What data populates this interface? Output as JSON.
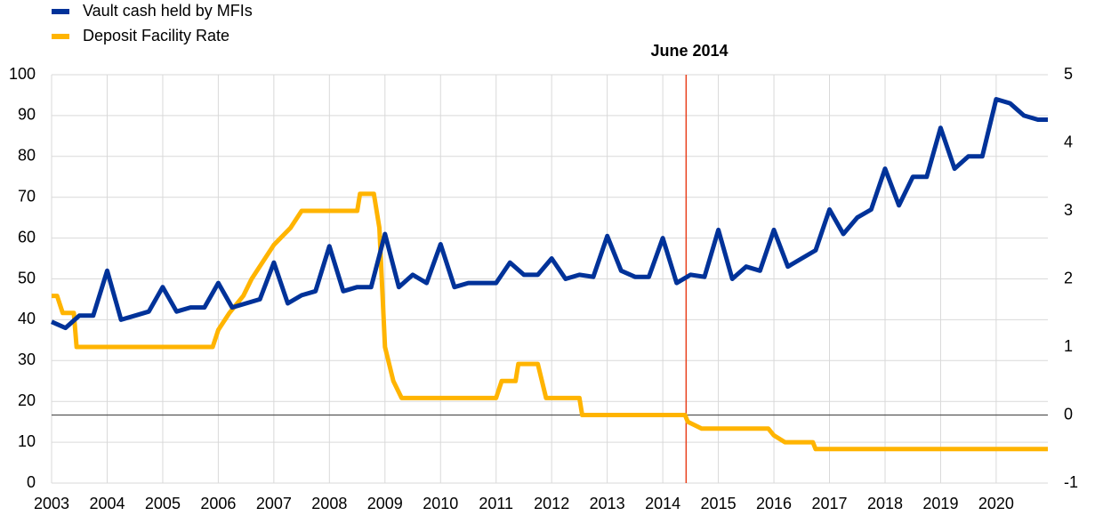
{
  "chart_data": {
    "type": "line",
    "annotation": {
      "label": "June 2014",
      "x": 2014.42
    },
    "xlim": [
      2003,
      2020.93
    ],
    "xticks": [
      2003,
      2004,
      2005,
      2006,
      2007,
      2008,
      2009,
      2010,
      2011,
      2012,
      2013,
      2014,
      2015,
      2016,
      2017,
      2018,
      2019,
      2020
    ],
    "ylim": [
      0,
      100
    ],
    "yticks": [
      0,
      10,
      20,
      30,
      40,
      50,
      60,
      70,
      80,
      90,
      100
    ],
    "y2lim": [
      -1,
      5
    ],
    "y2ticks": [
      -1,
      0,
      1,
      2,
      3,
      4,
      5
    ],
    "grid": true,
    "legend": "top-left",
    "series": [
      {
        "name": "Vault cash held by MFIs",
        "color": "#003299",
        "x": [
          2003,
          2003.25,
          2003.5,
          2003.75,
          2004,
          2004.25,
          2004.5,
          2004.75,
          2005,
          2005.25,
          2005.5,
          2005.75,
          2006,
          2006.25,
          2006.5,
          2006.75,
          2007,
          2007.25,
          2007.5,
          2007.75,
          2008,
          2008.25,
          2008.5,
          2008.75,
          2009,
          2009.25,
          2009.5,
          2009.75,
          2010,
          2010.25,
          2010.5,
          2010.75,
          2011,
          2011.25,
          2011.5,
          2011.75,
          2012,
          2012.25,
          2012.5,
          2012.75,
          2013,
          2013.25,
          2013.5,
          2013.75,
          2014,
          2014.25,
          2014.5,
          2014.75,
          2015,
          2015.25,
          2015.5,
          2015.75,
          2016,
          2016.25,
          2016.5,
          2016.75,
          2017,
          2017.25,
          2017.5,
          2017.75,
          2018,
          2018.25,
          2018.5,
          2018.75,
          2019,
          2019.25,
          2019.5,
          2019.75,
          2020,
          2020.25,
          2020.5,
          2020.75,
          2020.93
        ],
        "values": [
          39.5,
          38,
          41,
          41,
          52,
          40,
          41,
          42,
          48,
          42,
          43,
          43,
          49,
          43,
          44,
          45,
          54,
          44,
          46,
          47,
          58,
          47,
          48,
          48,
          61,
          48,
          51,
          49,
          58.5,
          48,
          49,
          49,
          49,
          54,
          51,
          51,
          55,
          50,
          51,
          50.5,
          60.5,
          52,
          50.5,
          50.5,
          60,
          49,
          51,
          50.5,
          62,
          50,
          53,
          52,
          62,
          53,
          55,
          57,
          67,
          61,
          65,
          67,
          77,
          68,
          75,
          75,
          87,
          77,
          80,
          80,
          94,
          93,
          90,
          89,
          89
        ]
      },
      {
        "name": "Deposit Facility Rate",
        "color": "#ffb400",
        "axis": "y2",
        "x": [
          2003,
          2003.1,
          2003.2,
          2003.4,
          2003.45,
          2005.9,
          2006,
          2006.2,
          2006.45,
          2006.6,
          2006.8,
          2007,
          2007.3,
          2007.5,
          2008.5,
          2008.55,
          2008.8,
          2008.9,
          2009,
          2009.15,
          2009.3,
          2011,
          2011.1,
          2011.35,
          2011.4,
          2011.75,
          2011.9,
          2012.5,
          2012.55,
          2014.4,
          2014.45,
          2014.7,
          2015.9,
          2016,
          2016.2,
          2016.7,
          2016.75,
          2020.93
        ],
        "values": [
          1.75,
          1.75,
          1.5,
          1.5,
          1,
          1,
          1.25,
          1.5,
          1.75,
          2,
          2.25,
          2.5,
          2.75,
          3,
          3,
          3.25,
          3.25,
          2.75,
          1,
          0.5,
          0.25,
          0.25,
          0.5,
          0.5,
          0.75,
          0.75,
          0.25,
          0.25,
          0,
          0,
          -0.1,
          -0.2,
          -0.2,
          -0.3,
          -0.4,
          -0.4,
          -0.5,
          -0.5
        ]
      }
    ]
  }
}
